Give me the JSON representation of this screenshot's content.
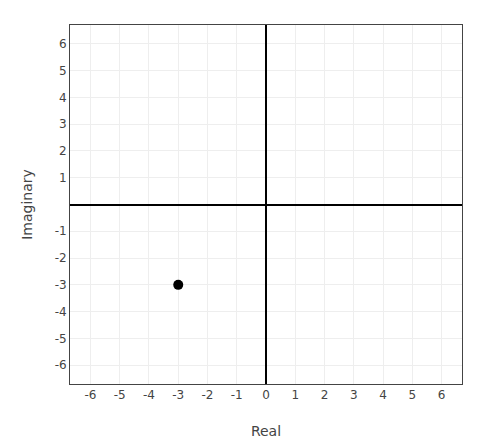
{
  "chart_data": {
    "type": "scatter",
    "x": [
      -3
    ],
    "y": [
      -3
    ],
    "color": "#000000",
    "marker": "circle",
    "xlabel": "Real",
    "ylabel": "Imaginary",
    "xlim": [
      -6.7,
      6.7
    ],
    "ylim": [
      -6.7,
      6.7
    ],
    "xticks": [
      -6,
      -5,
      -4,
      -3,
      -2,
      -1,
      0,
      1,
      2,
      3,
      4,
      5,
      6
    ],
    "yticks": [
      -6,
      -5,
      -4,
      -3,
      -2,
      -1,
      1,
      2,
      3,
      4,
      5,
      6
    ],
    "grid": true
  }
}
